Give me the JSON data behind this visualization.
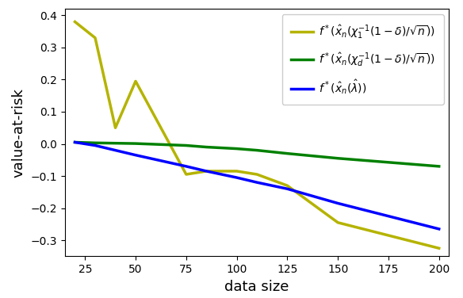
{
  "x": [
    20,
    30,
    40,
    50,
    75,
    85,
    100,
    110,
    125,
    150,
    200
  ],
  "yellow_y": [
    0.38,
    0.33,
    0.05,
    0.195,
    -0.095,
    -0.085,
    -0.085,
    -0.095,
    -0.13,
    -0.245,
    -0.325
  ],
  "green_y": [
    0.005,
    0.003,
    0.002,
    0.001,
    -0.005,
    -0.01,
    -0.015,
    -0.02,
    -0.03,
    -0.045,
    -0.07
  ],
  "blue_y": [
    0.005,
    -0.005,
    -0.02,
    -0.035,
    -0.07,
    -0.085,
    -0.105,
    -0.12,
    -0.14,
    -0.185,
    -0.265
  ],
  "yellow_color": "#b5b300",
  "green_color": "#008000",
  "blue_color": "#0000ff",
  "xlabel": "data size",
  "ylabel": "value-at-risk",
  "ylim": [
    -0.35,
    0.42
  ],
  "xlim": [
    15,
    205
  ],
  "xticks": [
    25,
    50,
    75,
    100,
    125,
    150,
    175,
    200
  ],
  "yticks": [
    -0.3,
    -0.2,
    -0.1,
    0.0,
    0.1,
    0.2,
    0.3,
    0.4
  ],
  "linewidth": 2.5
}
